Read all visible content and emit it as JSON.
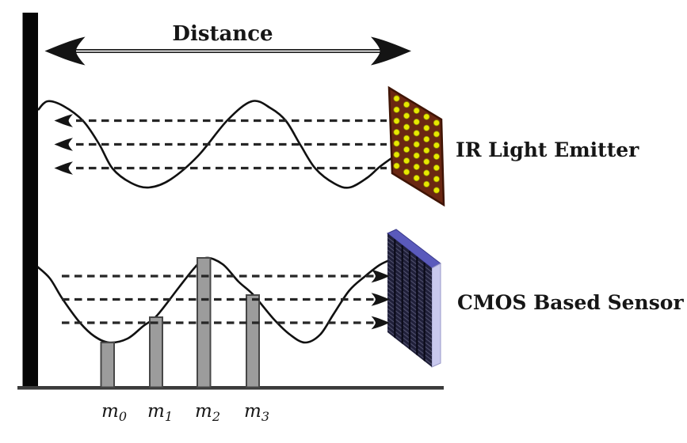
{
  "diagram": {
    "title_arrow_label": "Distance",
    "emitter": {
      "label": "IR Light Emitter"
    },
    "sensor": {
      "label": "CMOS Based Sensor"
    },
    "samples": [
      {
        "base": "m",
        "sub": "0"
      },
      {
        "base": "m",
        "sub": "1"
      },
      {
        "base": "m",
        "sub": "2"
      },
      {
        "base": "m",
        "sub": "3"
      }
    ],
    "colors": {
      "wall": "#060606",
      "line": "#1c1c1c",
      "dash": "#262626",
      "baseline": "#3a3a3a",
      "emitter_panel": "#6b2712",
      "emitter_panel_border": "#3f1404",
      "emitter_dot": "#e8e800",
      "emitter_dot_border": "#8a8a00",
      "sensor_front": "#20203a",
      "sensor_top": "#5a5abc",
      "sensor_side": "#c9c9ee",
      "bar_fill": "#9c9c9c",
      "bar_border": "#474747"
    }
  }
}
